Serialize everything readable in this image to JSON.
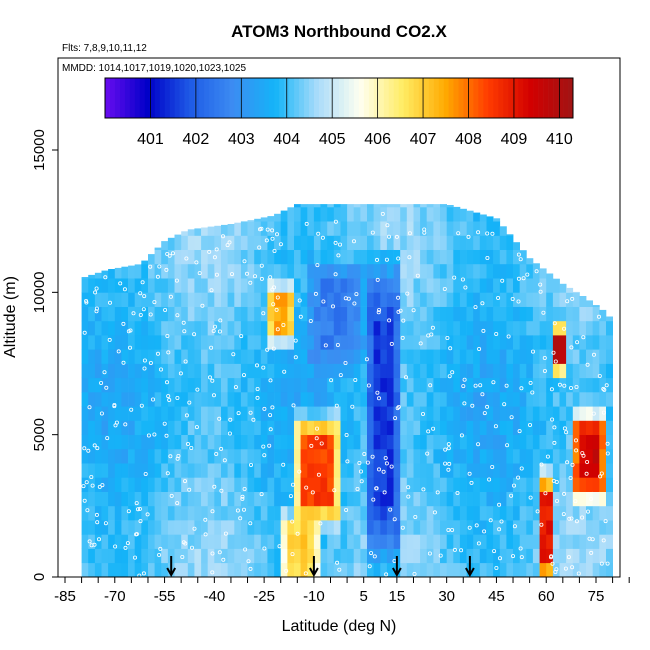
{
  "chart_data": {
    "type": "heatmap",
    "title": "ATOM3 Northbound CO2.X",
    "flights_note": "Flts: 7,8,9,10,11,12",
    "dates_note": "MMDD: 1014,1017,1019,1020,1023,1025",
    "xlabel": "Latitude (deg N)",
    "ylabel": "Altitude (m)",
    "xlim": [
      -85,
      85
    ],
    "ylim": [
      0,
      18000
    ],
    "xticks": [
      -85,
      -70,
      -55,
      -40,
      -25,
      -10,
      5,
      15,
      30,
      45,
      60,
      75
    ],
    "xtick_labels": [
      "-85",
      "-70",
      "-55",
      "-40",
      "-25",
      "-10",
      "5",
      "15",
      "30",
      "45",
      "60",
      "75"
    ],
    "yticks": [
      0,
      5000,
      10000,
      15000
    ],
    "ytick_labels": [
      "0",
      "5000",
      "10000",
      "15000"
    ],
    "colorbar": {
      "range": [
        400,
        410.3
      ],
      "ticks": [
        401,
        402,
        403,
        404,
        405,
        406,
        407,
        408,
        409,
        410
      ],
      "tick_labels": [
        "401",
        "402",
        "403",
        "404",
        "405",
        "406",
        "407",
        "408",
        "409",
        "410"
      ],
      "colors": [
        "#6a0cf0",
        "#0000c8",
        "#1e5ae6",
        "#3c8cf2",
        "#14b4f8",
        "#aadcfa",
        "#fffff0",
        "#ffec64",
        "#ffaa00",
        "#ff3c00",
        "#d20000",
        "#a01414"
      ]
    },
    "profile_arrows_lat": [
      -53,
      -10,
      15,
      37
    ],
    "data_extent": {
      "lat_min": -80,
      "lat_max": 80,
      "alt_top_by_lat": [
        [
          -80,
          10500
        ],
        [
          -72,
          10800
        ],
        [
          -62,
          11000
        ],
        [
          -55,
          11800
        ],
        [
          -48,
          12200
        ],
        [
          -35,
          12400
        ],
        [
          -22,
          12700
        ],
        [
          -15,
          13100
        ],
        [
          0,
          13100
        ],
        [
          30,
          13100
        ],
        [
          45,
          12600
        ],
        [
          55,
          11200
        ],
        [
          65,
          10300
        ],
        [
          72,
          9800
        ],
        [
          78,
          9300
        ],
        [
          80,
          9000
        ]
      ]
    },
    "features": [
      {
        "desc": "deep blue low-CO2 column",
        "lat_range": [
          6,
          16
        ],
        "alt_range": [
          0,
          11500
        ],
        "value": 401.5
      },
      {
        "desc": "upper low-CO2 patch",
        "lat_range": [
          -12,
          6
        ],
        "alt_range": [
          7500,
          11000
        ],
        "value": 402.5
      },
      {
        "desc": "high CO2 biomass-burning plume",
        "lat_range": [
          -16,
          -2
        ],
        "alt_range": [
          2000,
          5500
        ],
        "value": 408.5
      },
      {
        "desc": "high CO2 plume aloft",
        "lat_range": [
          -24,
          -16
        ],
        "alt_range": [
          8500,
          10000
        ],
        "value": 407.5
      },
      {
        "desc": "boundary-layer enhancement",
        "lat_range": [
          -20,
          -8
        ],
        "alt_range": [
          0,
          2000
        ],
        "value": 407
      },
      {
        "desc": "high CO2 northern midlatitudes",
        "lat_range": [
          58,
          62
        ],
        "alt_range": [
          0,
          3500
        ],
        "value": 409
      },
      {
        "desc": "high CO2 northern high latitudes",
        "lat_range": [
          68,
          78
        ],
        "alt_range": [
          3000,
          5500
        ],
        "value": 409.5
      },
      {
        "desc": "high CO2 aloft, north",
        "lat_range": [
          62,
          66
        ],
        "alt_range": [
          7500,
          8500
        ],
        "value": 410
      }
    ]
  }
}
